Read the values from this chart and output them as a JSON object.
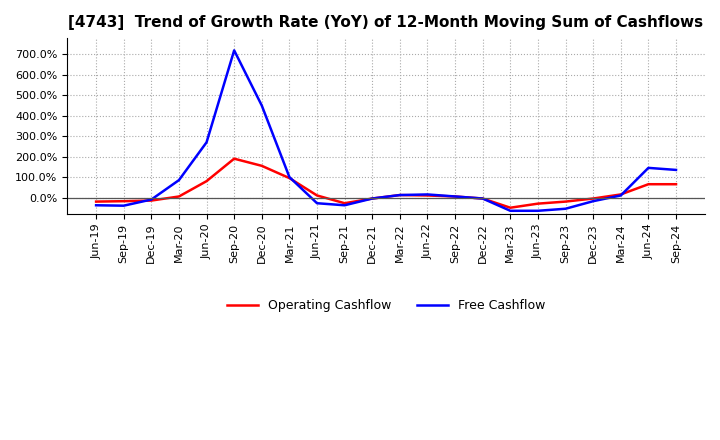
{
  "title": "[4743]  Trend of Growth Rate (YoY) of 12-Month Moving Sum of Cashflows",
  "x_labels": [
    "Jun-19",
    "Sep-19",
    "Dec-19",
    "Mar-20",
    "Jun-20",
    "Sep-20",
    "Dec-20",
    "Mar-21",
    "Jun-21",
    "Sep-21",
    "Dec-21",
    "Mar-22",
    "Jun-22",
    "Sep-22",
    "Dec-22",
    "Mar-23",
    "Jun-23",
    "Sep-23",
    "Dec-23",
    "Mar-24",
    "Jun-24",
    "Sep-24"
  ],
  "operating_cashflow": [
    -20,
    -18,
    -15,
    5,
    80,
    190,
    155,
    95,
    10,
    -28,
    -5,
    12,
    10,
    5,
    -5,
    -50,
    -30,
    -20,
    -5,
    15,
    65,
    65
  ],
  "free_cashflow": [
    -38,
    -40,
    -10,
    85,
    270,
    720,
    450,
    100,
    -28,
    -38,
    -5,
    12,
    15,
    5,
    -5,
    -65,
    -65,
    -55,
    -18,
    10,
    145,
    135
  ],
  "operating_color": "#FF0000",
  "free_color": "#0000FF",
  "bg_color": "#FFFFFF",
  "plot_bg_color": "#FFFFFF",
  "grid_color": "#AAAAAA",
  "ylim_min": -80,
  "ylim_max": 780,
  "ytick_values": [
    0,
    100,
    200,
    300,
    400,
    500,
    600,
    700
  ],
  "legend_labels": [
    "Operating Cashflow",
    "Free Cashflow"
  ],
  "title_fontsize": 11,
  "tick_fontsize": 8,
  "legend_fontsize": 9
}
